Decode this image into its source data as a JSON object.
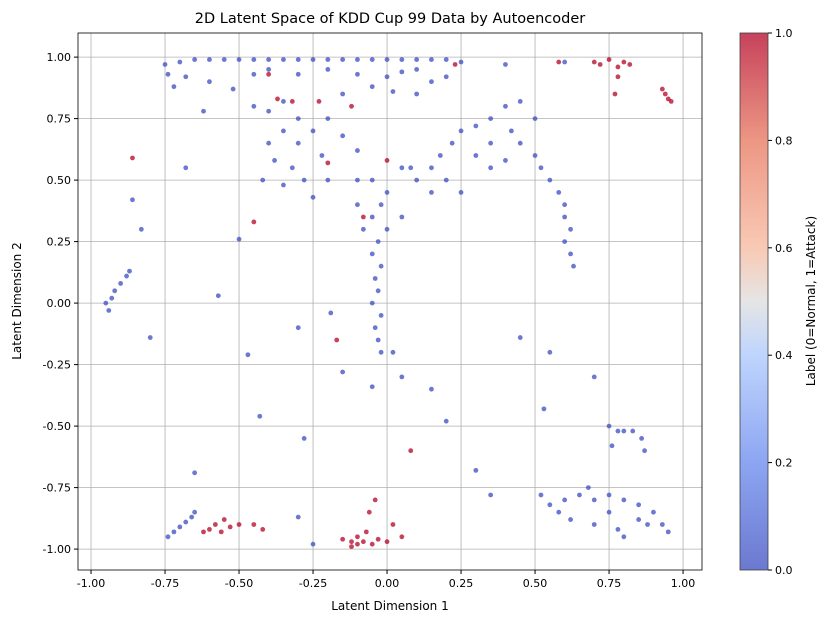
{
  "chart_data": {
    "type": "scatter",
    "title": "2D Latent Space of KDD Cup 99 Data by Autoencoder",
    "xlabel": "Latent Dimension 1",
    "ylabel": "Latent Dimension 2",
    "xlim": [
      -1.044,
      1.064
    ],
    "ylim": [
      -1.085,
      1.098
    ],
    "xticks": [
      "-1.00",
      "-0.75",
      "-0.50",
      "-0.25",
      "0.00",
      "0.25",
      "0.50",
      "0.75",
      "1.00"
    ],
    "yticks": [
      "-1.00",
      "-0.75",
      "-0.50",
      "-0.25",
      "0.00",
      "0.25",
      "0.50",
      "0.75",
      "1.00"
    ],
    "grid": true,
    "colormap": "coolwarm",
    "colors": {
      "normal": "#3b4cc0",
      "attack": "#b40426"
    },
    "colorbar": {
      "label": "Label (0=Normal, 1=Attack)",
      "ticks": [
        "0.0",
        "0.2",
        "0.4",
        "0.6",
        "0.8",
        "1.0"
      ],
      "range": [
        0,
        1
      ]
    },
    "points": [
      [
        -0.75,
        0.97,
        0
      ],
      [
        -0.7,
        0.98,
        0
      ],
      [
        -0.65,
        0.99,
        0
      ],
      [
        -0.6,
        0.99,
        0
      ],
      [
        -0.55,
        0.99,
        0
      ],
      [
        -0.5,
        0.99,
        0
      ],
      [
        -0.45,
        0.99,
        0
      ],
      [
        -0.4,
        0.99,
        0
      ],
      [
        -0.35,
        0.99,
        0
      ],
      [
        -0.3,
        0.99,
        0
      ],
      [
        -0.25,
        0.99,
        0
      ],
      [
        -0.2,
        0.99,
        0
      ],
      [
        -0.15,
        0.99,
        0
      ],
      [
        -0.1,
        0.99,
        0
      ],
      [
        -0.05,
        0.99,
        0
      ],
      [
        0,
        0.99,
        0
      ],
      [
        0.05,
        0.99,
        0
      ],
      [
        0.1,
        0.99,
        0
      ],
      [
        0.15,
        0.99,
        0
      ],
      [
        0.2,
        0.99,
        0
      ],
      [
        0.25,
        0.98,
        0
      ],
      [
        -0.74,
        0.93,
        0
      ],
      [
        -0.68,
        0.92,
        0
      ],
      [
        -0.6,
        0.9,
        0
      ],
      [
        -0.72,
        0.88,
        0
      ],
      [
        -0.52,
        0.87,
        0
      ],
      [
        -0.45,
        0.93,
        0
      ],
      [
        -0.4,
        0.95,
        0
      ],
      [
        -0.3,
        0.93,
        0
      ],
      [
        -0.2,
        0.95,
        0
      ],
      [
        -0.1,
        0.93,
        0
      ],
      [
        0,
        0.92,
        0
      ],
      [
        0.05,
        0.94,
        0
      ],
      [
        0.1,
        0.95,
        0
      ],
      [
        0.15,
        0.9,
        0
      ],
      [
        -0.05,
        0.88,
        0
      ],
      [
        0.02,
        0.86,
        0
      ],
      [
        -0.15,
        0.85,
        0
      ],
      [
        0.1,
        0.85,
        0
      ],
      [
        0.2,
        0.92,
        0
      ],
      [
        -0.45,
        0.8,
        0
      ],
      [
        -0.4,
        0.78,
        0
      ],
      [
        -0.35,
        0.82,
        0
      ],
      [
        -0.3,
        0.75,
        0
      ],
      [
        -0.35,
        0.7,
        0
      ],
      [
        -0.4,
        0.65,
        0
      ],
      [
        -0.3,
        0.65,
        0
      ],
      [
        -0.25,
        0.7,
        0
      ],
      [
        -0.38,
        0.58,
        0
      ],
      [
        -0.32,
        0.55,
        0
      ],
      [
        -0.42,
        0.5,
        0
      ],
      [
        -0.35,
        0.48,
        0
      ],
      [
        -0.28,
        0.5,
        0
      ],
      [
        -0.22,
        0.6,
        0
      ],
      [
        -0.2,
        0.75,
        0
      ],
      [
        -0.15,
        0.68,
        0
      ],
      [
        -0.1,
        0.62,
        0
      ],
      [
        -0.2,
        0.5,
        0
      ],
      [
        -0.1,
        0.5,
        0
      ],
      [
        -0.25,
        0.43,
        0
      ],
      [
        -0.05,
        0.5,
        0
      ],
      [
        0,
        0.45,
        0
      ],
      [
        0.05,
        0.55,
        0
      ],
      [
        -0.02,
        0.4,
        0
      ],
      [
        -0.05,
        0.35,
        0
      ],
      [
        0,
        0.3,
        0
      ],
      [
        -0.03,
        0.25,
        0
      ],
      [
        -0.05,
        0.2,
        0
      ],
      [
        -0.02,
        0.15,
        0
      ],
      [
        -0.04,
        0.1,
        0
      ],
      [
        -0.03,
        0.05,
        0
      ],
      [
        -0.05,
        0,
        0
      ],
      [
        -0.02,
        -0.05,
        0
      ],
      [
        -0.04,
        -0.1,
        0
      ],
      [
        -0.03,
        -0.15,
        0
      ],
      [
        -0.02,
        -0.2,
        0
      ],
      [
        0.02,
        -0.2,
        0
      ],
      [
        -0.08,
        0.3,
        0
      ],
      [
        0.05,
        0.35,
        0
      ],
      [
        -0.1,
        0.4,
        0
      ],
      [
        0.1,
        0.5,
        0
      ],
      [
        0.15,
        0.55,
        0
      ],
      [
        0.18,
        0.6,
        0
      ],
      [
        0.22,
        0.65,
        0
      ],
      [
        0.25,
        0.7,
        0
      ],
      [
        0.3,
        0.72,
        0
      ],
      [
        0.35,
        0.75,
        0
      ],
      [
        0.4,
        0.8,
        0
      ],
      [
        0.45,
        0.82,
        0
      ],
      [
        0.5,
        0.75,
        0
      ],
      [
        0.45,
        0.65,
        0
      ],
      [
        0.5,
        0.6,
        0
      ],
      [
        0.52,
        0.55,
        0
      ],
      [
        0.55,
        0.5,
        0
      ],
      [
        0.58,
        0.45,
        0
      ],
      [
        0.6,
        0.4,
        0
      ],
      [
        0.6,
        0.35,
        0
      ],
      [
        0.62,
        0.3,
        0
      ],
      [
        0.6,
        0.25,
        0
      ],
      [
        0.62,
        0.2,
        0
      ],
      [
        0.63,
        0.15,
        0
      ],
      [
        0.3,
        0.6,
        0
      ],
      [
        0.35,
        0.55,
        0
      ],
      [
        0.4,
        0.58,
        0
      ],
      [
        0.2,
        0.5,
        0
      ],
      [
        0.25,
        0.45,
        0
      ],
      [
        0.15,
        0.45,
        0
      ],
      [
        0.08,
        0.55,
        0
      ],
      [
        0.35,
        0.65,
        0
      ],
      [
        0.42,
        0.7,
        0
      ],
      [
        -0.95,
        0,
        0
      ],
      [
        -0.93,
        0.02,
        0
      ],
      [
        -0.92,
        0.05,
        0
      ],
      [
        -0.9,
        0.08,
        0
      ],
      [
        -0.88,
        0.11,
        0
      ],
      [
        -0.87,
        0.13,
        0
      ],
      [
        -0.94,
        -0.03,
        0
      ],
      [
        -0.74,
        -0.95,
        0
      ],
      [
        -0.72,
        -0.93,
        0
      ],
      [
        -0.7,
        -0.91,
        0
      ],
      [
        -0.68,
        -0.89,
        0
      ],
      [
        -0.66,
        -0.87,
        0
      ],
      [
        -0.65,
        -0.85,
        0
      ],
      [
        0.52,
        -0.78,
        0
      ],
      [
        0.55,
        -0.82,
        0
      ],
      [
        0.58,
        -0.85,
        0
      ],
      [
        0.6,
        -0.8,
        0
      ],
      [
        0.65,
        -0.78,
        0
      ],
      [
        0.7,
        -0.8,
        0
      ],
      [
        0.75,
        -0.78,
        0
      ],
      [
        0.8,
        -0.8,
        0
      ],
      [
        0.85,
        -0.82,
        0
      ],
      [
        0.9,
        -0.85,
        0
      ],
      [
        0.93,
        -0.9,
        0
      ],
      [
        0.95,
        -0.93,
        0
      ],
      [
        0.62,
        -0.88,
        0
      ],
      [
        0.7,
        -0.9,
        0
      ],
      [
        0.78,
        -0.92,
        0
      ],
      [
        0.85,
        -0.88,
        0
      ],
      [
        0.75,
        -0.85,
        0
      ],
      [
        0.68,
        -0.75,
        0
      ],
      [
        0.88,
        -0.9,
        0
      ],
      [
        0.8,
        -0.95,
        0
      ],
      [
        0.75,
        -0.5,
        0
      ],
      [
        0.78,
        -0.52,
        0
      ],
      [
        0.8,
        -0.52,
        0
      ],
      [
        0.83,
        -0.52,
        0
      ],
      [
        0.86,
        -0.55,
        0
      ],
      [
        0.87,
        -0.6,
        0
      ],
      [
        0.76,
        -0.58,
        0
      ],
      [
        -0.83,
        0.3,
        0
      ],
      [
        -0.86,
        0.42,
        0
      ],
      [
        -0.8,
        -0.14,
        0
      ],
      [
        -0.57,
        0.03,
        0
      ],
      [
        -0.47,
        -0.21,
        0
      ],
      [
        -0.43,
        -0.46,
        0
      ],
      [
        -0.3,
        -0.1,
        0
      ],
      [
        -0.28,
        -0.55,
        0
      ],
      [
        -0.19,
        -0.04,
        0
      ],
      [
        -0.15,
        -0.28,
        0
      ],
      [
        -0.05,
        -0.34,
        0
      ],
      [
        0.05,
        -0.3,
        0
      ],
      [
        0.15,
        -0.35,
        0
      ],
      [
        0.2,
        -0.48,
        0
      ],
      [
        0.3,
        -0.68,
        0
      ],
      [
        0.45,
        -0.14,
        0
      ],
      [
        0.55,
        -0.2,
        0
      ],
      [
        -0.65,
        -0.69,
        0
      ],
      [
        -0.68,
        0.55,
        0
      ],
      [
        -0.62,
        0.78,
        0
      ],
      [
        0.6,
        0.98,
        0
      ],
      [
        0.4,
        0.97,
        0
      ],
      [
        -0.5,
        0.26,
        0
      ],
      [
        0.35,
        -0.78,
        0
      ],
      [
        0.7,
        -0.3,
        0
      ],
      [
        -0.25,
        -0.98,
        0
      ],
      [
        -0.3,
        -0.87,
        0
      ],
      [
        0.53,
        -0.43,
        0
      ],
      [
        -0.15,
        -0.96,
        1
      ],
      [
        -0.12,
        -0.97,
        1
      ],
      [
        -0.1,
        -0.98,
        1
      ],
      [
        -0.08,
        -0.97,
        1
      ],
      [
        -0.05,
        -0.98,
        1
      ],
      [
        -0.03,
        -0.96,
        1
      ],
      [
        -0.1,
        -0.95,
        1
      ],
      [
        -0.07,
        -0.93,
        1
      ],
      [
        -0.12,
        -0.99,
        1
      ],
      [
        0,
        -0.97,
        1
      ],
      [
        -0.06,
        -0.85,
        1
      ],
      [
        -0.04,
        -0.8,
        1
      ],
      [
        0.02,
        -0.9,
        1
      ],
      [
        0.05,
        -0.95,
        1
      ],
      [
        -0.6,
        -0.92,
        1
      ],
      [
        -0.58,
        -0.9,
        1
      ],
      [
        -0.55,
        -0.88,
        1
      ],
      [
        -0.53,
        -0.91,
        1
      ],
      [
        -0.56,
        -0.93,
        1
      ],
      [
        -0.5,
        -0.9,
        1
      ],
      [
        -0.62,
        -0.93,
        1
      ],
      [
        -0.45,
        -0.9,
        1
      ],
      [
        -0.42,
        -0.92,
        1
      ],
      [
        0.7,
        0.98,
        1
      ],
      [
        0.72,
        0.97,
        1
      ],
      [
        0.75,
        0.99,
        1
      ],
      [
        0.78,
        0.96,
        1
      ],
      [
        0.8,
        0.98,
        1
      ],
      [
        0.82,
        0.97,
        1
      ],
      [
        0.58,
        0.98,
        1
      ],
      [
        0.78,
        0.92,
        1
      ],
      [
        0.77,
        0.85,
        1
      ],
      [
        0.93,
        0.87,
        1
      ],
      [
        0.94,
        0.85,
        1
      ],
      [
        0.96,
        0.82,
        1
      ],
      [
        0.95,
        0.83,
        1
      ],
      [
        -0.86,
        0.59,
        1
      ],
      [
        -0.4,
        0.93,
        1
      ],
      [
        -0.37,
        0.83,
        1
      ],
      [
        -0.32,
        0.82,
        1
      ],
      [
        -0.23,
        0.82,
        1
      ],
      [
        -0.2,
        0.57,
        1
      ],
      [
        -0.12,
        0.8,
        1
      ],
      [
        -0.08,
        0.35,
        1
      ],
      [
        -0.45,
        0.33,
        1
      ],
      [
        -0.17,
        -0.15,
        1
      ],
      [
        0,
        0.58,
        1
      ],
      [
        0.23,
        0.97,
        1
      ],
      [
        0.08,
        -0.6,
        1
      ]
    ]
  }
}
